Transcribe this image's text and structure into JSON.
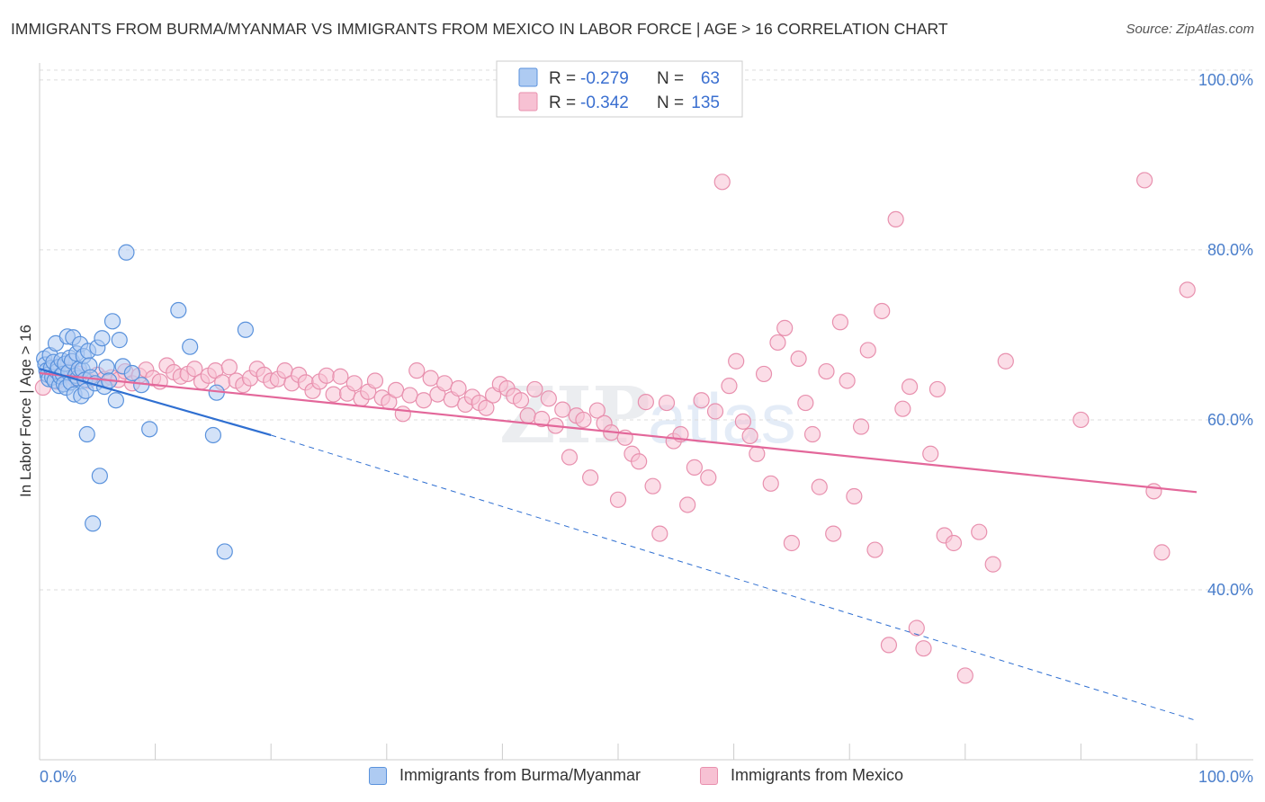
{
  "header": {
    "title": "IMMIGRANTS FROM BURMA/MYANMAR VS IMMIGRANTS FROM MEXICO IN LABOR FORCE | AGE > 16 CORRELATION CHART",
    "source": "Source: ZipAtlas.com"
  },
  "watermark": {
    "zip": "ZIP",
    "atlas": "atlas"
  },
  "legend": {
    "rows": [
      {
        "r_label": "R =",
        "r_value": "-0.279",
        "n_label": "N =",
        "n_value": "63"
      },
      {
        "r_label": "R =",
        "r_value": "-0.342",
        "n_label": "N =",
        "n_value": "135"
      }
    ]
  },
  "bottom_legend": {
    "burma": "Immigrants from Burma/Myanmar",
    "mexico": "Immigrants from Mexico"
  },
  "colors": {
    "burma_fill": "#aecbf2",
    "burma_stroke": "#5a92dc",
    "burma_line": "#2f6fd1",
    "mexico_fill": "#f7c1d3",
    "mexico_stroke": "#e890ae",
    "mexico_line": "#e3679a",
    "tick_text": "#4a7ecb",
    "grid": "#dddddd"
  },
  "chart_data": {
    "type": "scatter",
    "title": "IMMIGRANTS FROM BURMA/MYANMAR VS IMMIGRANTS FROM MEXICO IN LABOR FORCE | AGE > 16 CORRELATION CHART",
    "xlabel": "",
    "ylabel": "In Labor Force | Age > 16",
    "xlim": [
      0,
      100
    ],
    "ylim": [
      20,
      102
    ],
    "x_tick_labels": [
      "0.0%",
      "100.0%"
    ],
    "y_ticks": [
      40,
      60,
      80,
      100
    ],
    "y_tick_labels": [
      "40.0%",
      "60.0%",
      "80.0%",
      "100.0%"
    ],
    "grid": true,
    "legend_position": "top-center",
    "series": [
      {
        "name": "Immigrants from Burma/Myanmar",
        "R": -0.279,
        "N": 63,
        "trend": {
          "x0": 0,
          "y0": 66.0,
          "x1": 20,
          "y1": 58.2,
          "dash_to_x": 100,
          "dash_to_y": 24.6
        },
        "points": [
          [
            0.4,
            67.2
          ],
          [
            0.5,
            66.5
          ],
          [
            0.6,
            65.8
          ],
          [
            0.7,
            65.3
          ],
          [
            0.8,
            64.8
          ],
          [
            0.9,
            67.6
          ],
          [
            1.0,
            66.1
          ],
          [
            1.1,
            65.0
          ],
          [
            1.2,
            66.8
          ],
          [
            1.3,
            64.6
          ],
          [
            1.4,
            69.0
          ],
          [
            1.5,
            65.7
          ],
          [
            1.6,
            66.2
          ],
          [
            1.7,
            64.0
          ],
          [
            1.8,
            65.1
          ],
          [
            1.9,
            67.0
          ],
          [
            2.0,
            65.4
          ],
          [
            2.1,
            64.2
          ],
          [
            2.2,
            66.6
          ],
          [
            2.3,
            63.8
          ],
          [
            2.4,
            69.8
          ],
          [
            2.5,
            65.6
          ],
          [
            2.6,
            67.3
          ],
          [
            2.7,
            64.4
          ],
          [
            2.8,
            66.9
          ],
          [
            2.9,
            69.7
          ],
          [
            3.0,
            63.0
          ],
          [
            3.1,
            65.2
          ],
          [
            3.2,
            67.8
          ],
          [
            3.3,
            64.9
          ],
          [
            3.4,
            66.0
          ],
          [
            3.5,
            68.9
          ],
          [
            3.6,
            62.8
          ],
          [
            3.7,
            65.9
          ],
          [
            3.8,
            67.5
          ],
          [
            3.9,
            64.7
          ],
          [
            4.0,
            63.4
          ],
          [
            4.1,
            58.3
          ],
          [
            4.2,
            68.1
          ],
          [
            4.3,
            66.4
          ],
          [
            4.4,
            65.0
          ],
          [
            4.6,
            47.8
          ],
          [
            4.8,
            64.3
          ],
          [
            5.0,
            68.5
          ],
          [
            5.2,
            53.4
          ],
          [
            5.4,
            69.6
          ],
          [
            5.6,
            63.9
          ],
          [
            5.8,
            66.2
          ],
          [
            6.0,
            64.6
          ],
          [
            6.3,
            71.6
          ],
          [
            6.6,
            62.3
          ],
          [
            6.9,
            69.4
          ],
          [
            7.2,
            66.3
          ],
          [
            7.5,
            79.7
          ],
          [
            8.0,
            65.5
          ],
          [
            8.8,
            64.1
          ],
          [
            9.5,
            58.9
          ],
          [
            12.0,
            72.9
          ],
          [
            13.0,
            68.6
          ],
          [
            15.0,
            58.2
          ],
          [
            15.3,
            63.2
          ],
          [
            16.0,
            44.5
          ],
          [
            17.8,
            70.6
          ]
        ]
      },
      {
        "name": "Immigrants from Mexico",
        "R": -0.342,
        "N": 135,
        "trend": {
          "x0": 0,
          "y0": 65.5,
          "x1": 100,
          "y1": 51.5
        },
        "points": [
          [
            0.3,
            63.8
          ],
          [
            1.5,
            64.5
          ],
          [
            2.5,
            65.8
          ],
          [
            3.0,
            64.9
          ],
          [
            3.5,
            65.4
          ],
          [
            4.2,
            64.6
          ],
          [
            5.0,
            65.3
          ],
          [
            5.6,
            64.8
          ],
          [
            6.2,
            65.0
          ],
          [
            6.8,
            64.7
          ],
          [
            7.4,
            65.7
          ],
          [
            8.0,
            64.3
          ],
          [
            8.6,
            65.2
          ],
          [
            9.2,
            65.9
          ],
          [
            9.8,
            64.9
          ],
          [
            10.4,
            64.5
          ],
          [
            11.0,
            66.4
          ],
          [
            11.6,
            65.6
          ],
          [
            12.2,
            65.1
          ],
          [
            12.8,
            65.4
          ],
          [
            13.4,
            66.0
          ],
          [
            14.0,
            64.5
          ],
          [
            14.6,
            65.2
          ],
          [
            15.2,
            65.8
          ],
          [
            15.8,
            64.4
          ],
          [
            16.4,
            66.2
          ],
          [
            17.0,
            64.6
          ],
          [
            17.6,
            64.1
          ],
          [
            18.2,
            64.9
          ],
          [
            18.8,
            66.0
          ],
          [
            19.4,
            65.3
          ],
          [
            20.0,
            64.6
          ],
          [
            20.6,
            64.8
          ],
          [
            21.2,
            65.8
          ],
          [
            21.8,
            64.3
          ],
          [
            22.4,
            65.3
          ],
          [
            23.0,
            64.4
          ],
          [
            23.6,
            63.4
          ],
          [
            24.2,
            64.5
          ],
          [
            24.8,
            65.2
          ],
          [
            25.4,
            63.0
          ],
          [
            26.0,
            65.1
          ],
          [
            26.6,
            63.1
          ],
          [
            27.2,
            64.3
          ],
          [
            27.8,
            62.5
          ],
          [
            28.4,
            63.3
          ],
          [
            29.0,
            64.6
          ],
          [
            29.6,
            62.6
          ],
          [
            30.2,
            62.1
          ],
          [
            30.8,
            63.5
          ],
          [
            31.4,
            60.7
          ],
          [
            32.0,
            62.9
          ],
          [
            32.6,
            65.8
          ],
          [
            33.2,
            62.3
          ],
          [
            33.8,
            64.9
          ],
          [
            34.4,
            63.0
          ],
          [
            35.0,
            64.3
          ],
          [
            35.6,
            62.4
          ],
          [
            36.2,
            63.7
          ],
          [
            36.8,
            61.8
          ],
          [
            37.4,
            62.7
          ],
          [
            38.0,
            62.0
          ],
          [
            38.6,
            61.4
          ],
          [
            39.2,
            62.9
          ],
          [
            39.8,
            64.2
          ],
          [
            40.4,
            63.7
          ],
          [
            41.0,
            62.8
          ],
          [
            41.6,
            62.3
          ],
          [
            42.2,
            60.5
          ],
          [
            42.8,
            63.6
          ],
          [
            43.4,
            60.1
          ],
          [
            44.0,
            62.5
          ],
          [
            44.6,
            59.3
          ],
          [
            45.2,
            61.2
          ],
          [
            45.8,
            55.6
          ],
          [
            46.4,
            60.5
          ],
          [
            47.0,
            60.0
          ],
          [
            47.6,
            53.2
          ],
          [
            48.2,
            61.1
          ],
          [
            48.8,
            59.6
          ],
          [
            49.4,
            58.5
          ],
          [
            50.0,
            50.6
          ],
          [
            50.6,
            57.9
          ],
          [
            51.2,
            56.0
          ],
          [
            51.8,
            55.1
          ],
          [
            52.4,
            62.1
          ],
          [
            53.0,
            52.2
          ],
          [
            53.6,
            46.6
          ],
          [
            54.2,
            62.0
          ],
          [
            54.8,
            57.5
          ],
          [
            55.4,
            58.3
          ],
          [
            56.0,
            50.0
          ],
          [
            56.6,
            54.4
          ],
          [
            57.2,
            62.3
          ],
          [
            57.8,
            53.2
          ],
          [
            58.4,
            61.0
          ],
          [
            59.0,
            88.0
          ],
          [
            59.6,
            64.0
          ],
          [
            60.2,
            66.9
          ],
          [
            60.8,
            59.8
          ],
          [
            61.4,
            58.1
          ],
          [
            62.0,
            56.0
          ],
          [
            62.6,
            65.4
          ],
          [
            63.2,
            52.5
          ],
          [
            63.8,
            69.1
          ],
          [
            64.4,
            70.8
          ],
          [
            65.0,
            45.5
          ],
          [
            65.6,
            67.2
          ],
          [
            66.2,
            62.0
          ],
          [
            66.8,
            58.3
          ],
          [
            67.4,
            52.1
          ],
          [
            68.0,
            65.7
          ],
          [
            68.6,
            46.6
          ],
          [
            69.2,
            71.5
          ],
          [
            69.8,
            64.6
          ],
          [
            70.4,
            51.0
          ],
          [
            71.0,
            59.2
          ],
          [
            71.6,
            68.2
          ],
          [
            72.2,
            44.7
          ],
          [
            72.8,
            72.8
          ],
          [
            73.4,
            33.5
          ],
          [
            74.0,
            83.6
          ],
          [
            74.6,
            61.3
          ],
          [
            75.2,
            63.9
          ],
          [
            75.8,
            35.5
          ],
          [
            76.4,
            33.1
          ],
          [
            77.0,
            56.0
          ],
          [
            77.6,
            63.6
          ],
          [
            78.2,
            46.4
          ],
          [
            79.0,
            45.5
          ],
          [
            80.0,
            29.9
          ],
          [
            81.2,
            46.8
          ],
          [
            82.4,
            43.0
          ],
          [
            83.5,
            66.9
          ],
          [
            90.0,
            60.0
          ],
          [
            95.5,
            88.2
          ],
          [
            96.3,
            51.6
          ],
          [
            97.0,
            44.4
          ],
          [
            99.2,
            75.3
          ]
        ]
      }
    ]
  }
}
